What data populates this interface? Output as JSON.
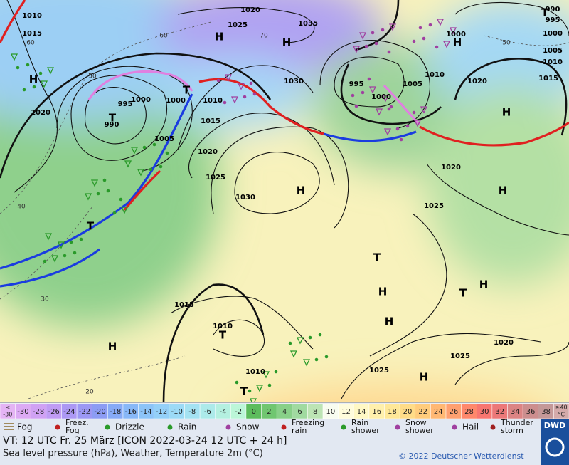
{
  "map": {
    "labels": [
      "1010",
      "1015",
      "1020",
      "995",
      "990",
      "1000",
      "1005",
      "1000",
      "1010",
      "1015",
      "1020",
      "1025",
      "1030",
      "1030",
      "1025",
      "1020",
      "1035",
      "995",
      "1000",
      "1005",
      "1010",
      "1020",
      "1000",
      "990",
      "995",
      "1000",
      "1005",
      "1010",
      "1015",
      "1020",
      "1025",
      "1015",
      "1010",
      "1010",
      "1025",
      "1025",
      "1020",
      "50",
      "60",
      "70",
      "60",
      "40",
      "30",
      "20",
      "50"
    ],
    "centers": [
      "H",
      "T",
      "H",
      "H",
      "T",
      "H",
      "H",
      "H",
      "T",
      "H",
      "H",
      "H",
      "T",
      "H",
      "T",
      "T",
      "H",
      "T",
      "T",
      "H"
    ]
  },
  "scale": {
    "cells": [
      {
        "lines": [
          "<",
          "-30"
        ],
        "color": "#e4b4f4"
      },
      {
        "lines": [
          "-30"
        ],
        "color": "#dcaaf4"
      },
      {
        "lines": [
          "-28"
        ],
        "color": "#d0a2f4"
      },
      {
        "lines": [
          "-26"
        ],
        "color": "#c09cf4"
      },
      {
        "lines": [
          "-24"
        ],
        "color": "#ac98f4"
      },
      {
        "lines": [
          "-22"
        ],
        "color": "#9c98f4"
      },
      {
        "lines": [
          "-20"
        ],
        "color": "#8c9cf4"
      },
      {
        "lines": [
          "-18"
        ],
        "color": "#86aaf6"
      },
      {
        "lines": [
          "-16"
        ],
        "color": "#88b8f8"
      },
      {
        "lines": [
          "-14"
        ],
        "color": "#8cc4f8"
      },
      {
        "lines": [
          "-12"
        ],
        "color": "#94d0f8"
      },
      {
        "lines": [
          "-10"
        ],
        "color": "#9cdaf6"
      },
      {
        "lines": [
          "-8"
        ],
        "color": "#a4e2f2"
      },
      {
        "lines": [
          "-6"
        ],
        "color": "#aceaea"
      },
      {
        "lines": [
          "-4"
        ],
        "color": "#b4f0e0"
      },
      {
        "lines": [
          "-2"
        ],
        "color": "#bcf6d8"
      },
      {
        "lines": [
          "0"
        ],
        "color": "#5cbc5c"
      },
      {
        "lines": [
          "2"
        ],
        "color": "#70c670"
      },
      {
        "lines": [
          "4"
        ],
        "color": "#88d088"
      },
      {
        "lines": [
          "6"
        ],
        "color": "#a0daa0"
      },
      {
        "lines": [
          "8"
        ],
        "color": "#bce4b4"
      },
      {
        "lines": [
          "10"
        ],
        "color": "#f8fcf0"
      },
      {
        "lines": [
          "12"
        ],
        "color": "#fffcdc"
      },
      {
        "lines": [
          "14"
        ],
        "color": "#fff8c4"
      },
      {
        "lines": [
          "16"
        ],
        "color": "#fff0ac"
      },
      {
        "lines": [
          "18"
        ],
        "color": "#ffe898"
      },
      {
        "lines": [
          "20"
        ],
        "color": "#ffdc88"
      },
      {
        "lines": [
          "22"
        ],
        "color": "#ffcc7c"
      },
      {
        "lines": [
          "24"
        ],
        "color": "#ffb874"
      },
      {
        "lines": [
          "26"
        ],
        "color": "#ffa070"
      },
      {
        "lines": [
          "28"
        ],
        "color": "#ff886c"
      },
      {
        "lines": [
          "30"
        ],
        "color": "#f87670"
      },
      {
        "lines": [
          "32"
        ],
        "color": "#ec7878"
      },
      {
        "lines": [
          "34"
        ],
        "color": "#dc8484"
      },
      {
        "lines": [
          "36"
        ],
        "color": "#cc8e8e"
      },
      {
        "lines": [
          "38"
        ],
        "color": "#c49898"
      },
      {
        "lines": [
          "≥40",
          "°C"
        ],
        "color": "#d4aaaa"
      }
    ]
  },
  "legend": [
    {
      "lines": [
        "Fog"
      ]
    },
    {
      "lines": [
        "Freez.",
        "Fog"
      ]
    },
    {
      "lines": [
        "Drizzle"
      ]
    },
    {
      "lines": [
        "Rain"
      ]
    },
    {
      "lines": [
        "Snow"
      ]
    },
    {
      "lines": [
        "Freezing",
        "rain"
      ]
    },
    {
      "lines": [
        "Rain",
        "shower"
      ]
    },
    {
      "lines": [
        "Snow",
        "shower"
      ]
    },
    {
      "lines": [
        "Hail"
      ]
    },
    {
      "lines": [
        "Thunder",
        "storm"
      ]
    }
  ],
  "footer": {
    "line1": "VT: 12 UTC Fr.  25 März [ICON 2022-03-24  12 UTC + 24 h]",
    "line2": "Sea level pressure (hPa), Weather, Temperature 2m (°C)",
    "copyright": "© 2022 Deutscher Wetterdienst",
    "logo": "DWD"
  }
}
